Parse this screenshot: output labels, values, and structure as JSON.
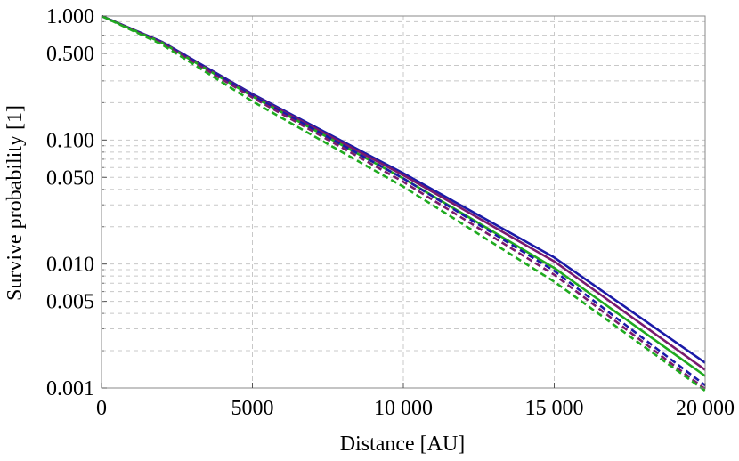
{
  "chart_data": {
    "type": "line",
    "xlabel": "Distance [AU]",
    "ylabel": "Survive probability [1]",
    "xlim": [
      0,
      20000
    ],
    "ylim": [
      0.001,
      1.0
    ],
    "yscale": "log",
    "grid": true,
    "x_ticks": [
      {
        "value": 0,
        "label": "0"
      },
      {
        "value": 5000,
        "label": "5000"
      },
      {
        "value": 10000,
        "label": "10 000"
      },
      {
        "value": 15000,
        "label": "15 000"
      },
      {
        "value": 20000,
        "label": "20 000"
      }
    ],
    "y_ticks": [
      {
        "value": 1.0,
        "label": "1.000"
      },
      {
        "value": 0.5,
        "label": "0.500"
      },
      {
        "value": 0.1,
        "label": "0.100"
      },
      {
        "value": 0.05,
        "label": "0.050"
      },
      {
        "value": 0.01,
        "label": "0.010"
      },
      {
        "value": 0.005,
        "label": "0.005"
      },
      {
        "value": 0.001,
        "label": "0.001"
      }
    ],
    "x": [
      0,
      2000,
      5000,
      10000,
      15000,
      20000
    ],
    "series": [
      {
        "color": "#1a1aa8",
        "dash": "solid",
        "values": [
          1.0,
          0.62,
          0.235,
          0.054,
          0.0113,
          0.0016
        ]
      },
      {
        "color": "#7a1a6e",
        "dash": "solid",
        "values": [
          1.0,
          0.615,
          0.23,
          0.052,
          0.0105,
          0.0014
        ]
      },
      {
        "color": "#1faa1f",
        "dash": "solid",
        "values": [
          1.0,
          0.61,
          0.225,
          0.049,
          0.0093,
          0.00125
        ]
      },
      {
        "color": "#1a1aa8",
        "dash": "dashed",
        "values": [
          1.0,
          0.615,
          0.228,
          0.049,
          0.0088,
          0.00105
        ]
      },
      {
        "color": "#7a1a6e",
        "dash": "dashed",
        "values": [
          1.0,
          0.605,
          0.22,
          0.046,
          0.0082,
          0.00098
        ]
      },
      {
        "color": "#1faa1f",
        "dash": "dashed",
        "values": [
          1.0,
          0.59,
          0.205,
          0.042,
          0.0072,
          0.00095
        ]
      }
    ]
  }
}
